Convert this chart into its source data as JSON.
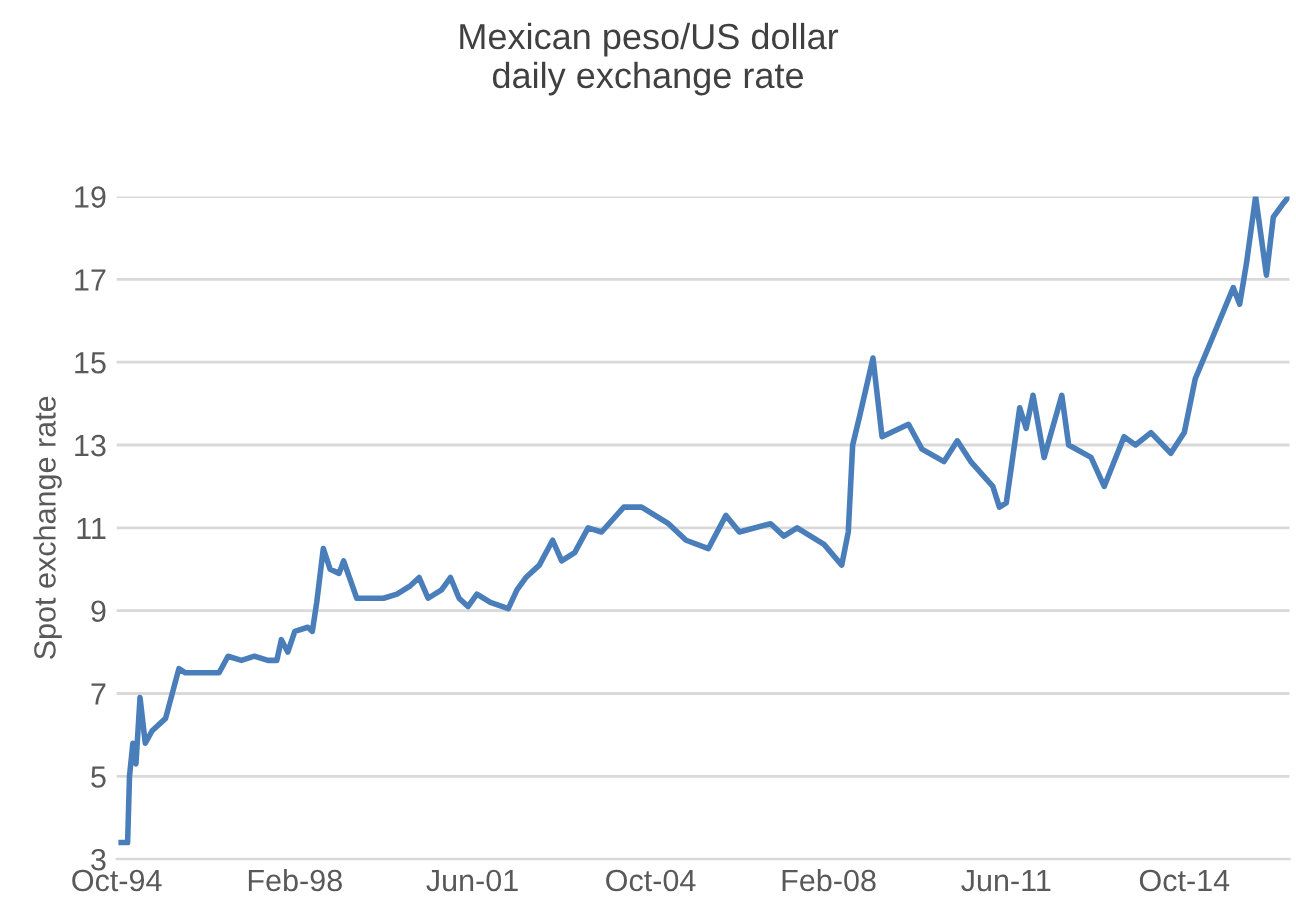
{
  "chart_data": {
    "type": "line",
    "title": "Mexican peso/US dollar\ndaily exchange rate",
    "ylabel": "Spot exchange rate",
    "x": [
      "1994-11-01",
      "1994-12-15",
      "1994-12-28",
      "1995-01-20",
      "1995-02-10",
      "1995-03-10",
      "1995-04-15",
      "1995-06-01",
      "1995-09-01",
      "1995-12-01",
      "1996-01-15",
      "1996-03-01",
      "1996-06-01",
      "1996-09-01",
      "1996-11-01",
      "1997-02-01",
      "1997-05-01",
      "1997-08-01",
      "1997-10-01",
      "1997-11-01",
      "1997-12-15",
      "1998-02-01",
      "1998-05-01",
      "1998-06-01",
      "1998-07-01",
      "1998-08-15",
      "1998-10-01",
      "1998-12-01",
      "1999-01-01",
      "1999-04-01",
      "1999-07-01",
      "1999-10-01",
      "2000-01-01",
      "2000-04-01",
      "2000-06-01",
      "2000-08-01",
      "2000-11-01",
      "2001-01-01",
      "2001-03-01",
      "2001-05-01",
      "2001-07-01",
      "2001-10-01",
      "2002-02-01",
      "2002-04-01",
      "2002-06-01",
      "2002-09-01",
      "2002-12-01",
      "2003-02-01",
      "2003-05-01",
      "2003-08-01",
      "2003-11-01",
      "2004-04-01",
      "2004-08-01",
      "2005-02-01",
      "2005-06-01",
      "2005-11-01",
      "2006-03-01",
      "2006-06-01",
      "2007-01-01",
      "2007-04-01",
      "2007-07-01",
      "2008-01-01",
      "2008-05-01",
      "2008-06-15",
      "2008-07-15",
      "2008-09-01",
      "2008-12-01",
      "2009-02-01",
      "2009-08-01",
      "2009-11-01",
      "2010-04-01",
      "2010-07-01",
      "2010-10-01",
      "2011-03-01",
      "2011-04-15",
      "2011-06-01",
      "2011-09-01",
      "2011-10-15",
      "2011-12-01",
      "2012-02-15",
      "2012-06-15",
      "2012-08-01",
      "2013-01-01",
      "2013-04-01",
      "2013-08-15",
      "2013-11-01",
      "2014-02-15",
      "2014-07-01",
      "2014-10-01",
      "2014-12-15",
      "2015-04-01",
      "2015-09-01",
      "2015-10-15",
      "2015-12-01",
      "2016-02-01",
      "2016-04-15",
      "2016-06-01",
      "2016-08-01",
      "2016-09-15"
    ],
    "series": [
      {
        "color": "#4a7ebb",
        "values": [
          3.4,
          3.4,
          5.0,
          5.8,
          5.3,
          6.9,
          5.8,
          6.1,
          6.4,
          7.6,
          7.5,
          7.5,
          7.5,
          7.5,
          7.9,
          7.8,
          7.9,
          7.8,
          7.8,
          8.3,
          8.0,
          8.5,
          8.6,
          8.5,
          9.2,
          10.5,
          10.0,
          9.9,
          10.2,
          9.3,
          9.3,
          9.3,
          9.4,
          9.6,
          9.8,
          9.3,
          9.5,
          9.8,
          9.3,
          9.1,
          9.4,
          9.2,
          9.05,
          9.5,
          9.8,
          10.1,
          10.7,
          10.2,
          10.4,
          11.0,
          10.9,
          11.5,
          11.5,
          11.1,
          10.7,
          10.5,
          11.3,
          10.9,
          11.1,
          10.8,
          11.0,
          10.6,
          10.1,
          10.9,
          13.0,
          13.7,
          15.1,
          13.2,
          13.5,
          12.9,
          12.6,
          13.1,
          12.6,
          12.0,
          11.5,
          11.6,
          13.9,
          13.4,
          14.2,
          12.7,
          14.2,
          13.0,
          12.7,
          12.0,
          13.2,
          13.0,
          13.3,
          12.8,
          13.3,
          14.6,
          15.5,
          16.8,
          16.4,
          17.4,
          19.0,
          17.1,
          18.5,
          18.8,
          19.0
        ]
      }
    ],
    "xlim": [
      "1994-10-01",
      "2016-09-20"
    ],
    "xticks": [
      {
        "value": "1994-10-01",
        "label": "Oct-94"
      },
      {
        "value": "1998-02-01",
        "label": "Feb-98"
      },
      {
        "value": "2001-06-01",
        "label": "Jun-01"
      },
      {
        "value": "2004-10-01",
        "label": "Oct-04"
      },
      {
        "value": "2008-02-01",
        "label": "Feb-08"
      },
      {
        "value": "2011-06-01",
        "label": "Jun-11"
      },
      {
        "value": "2014-10-01",
        "label": "Oct-14"
      }
    ],
    "ylim": [
      3,
      19
    ],
    "yticks": [
      3,
      5,
      7,
      9,
      11,
      13,
      15,
      17,
      19
    ],
    "grid": "y",
    "marker": "none",
    "line_style": "solid"
  }
}
